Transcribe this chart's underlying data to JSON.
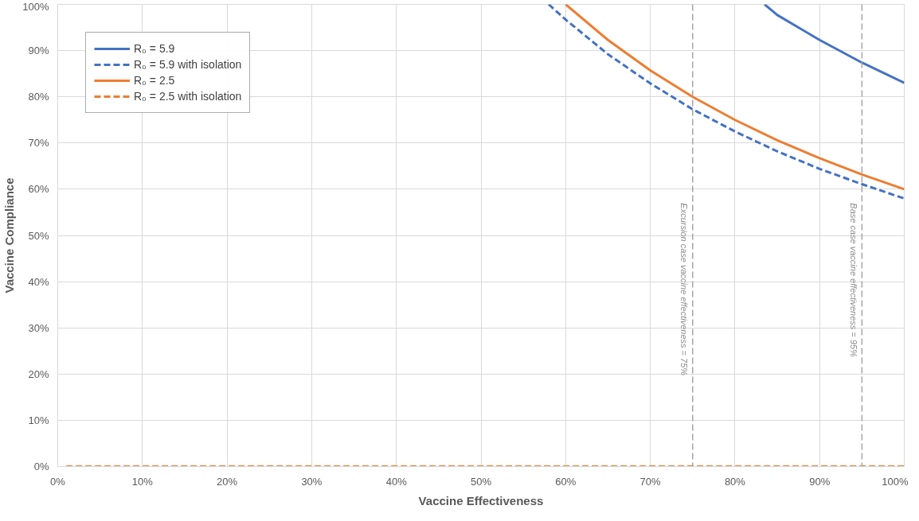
{
  "chart_data": {
    "type": "line",
    "xlabel": "Vaccine Effectiveness",
    "ylabel": "Vaccine Compliance",
    "series": [
      {
        "name": "R₀ = 5.9",
        "color": "#4472c4",
        "line_style": "solid",
        "x": [
          83.5,
          85,
          90,
          95,
          100
        ],
        "values": [
          100,
          97.7,
          92.3,
          87.4,
          83
        ]
      },
      {
        "name": "R₀ = 5.9 with isolation",
        "color": "#4472c4",
        "line_style": "dashed",
        "x": [
          58,
          60,
          65,
          70,
          75,
          80,
          85,
          90,
          95,
          100
        ],
        "values": [
          100,
          96.7,
          89.2,
          82.9,
          77.3,
          72.5,
          68.2,
          64.4,
          61.1,
          58
        ]
      },
      {
        "name": "R₀ = 2.5",
        "color": "#ed7d31",
        "line_style": "solid",
        "x": [
          60,
          65,
          70,
          75,
          80,
          85,
          90,
          95,
          100
        ],
        "values": [
          100,
          92.3,
          85.7,
          80,
          75,
          70.6,
          66.7,
          63.2,
          60
        ]
      },
      {
        "name": "R₀ = 2.5 with isolation",
        "color": "#ed7d31",
        "line_style": "dashed",
        "x": [
          1,
          100
        ],
        "values": [
          0,
          0
        ]
      }
    ],
    "ref_lines": [
      {
        "axis": "x",
        "value": 75,
        "label": "Excursion case vaccine effectiveness = 75%",
        "color": "#a5a5a5",
        "line_style": "dashed"
      },
      {
        "axis": "x",
        "value": 95,
        "label": "Base case vaccine effectiveness = 95%",
        "color": "#a5a5a5",
        "line_style": "dashed"
      }
    ],
    "xlim": [
      0,
      100
    ],
    "ylim": [
      0,
      100
    ],
    "xticks": [
      {
        "value": 0,
        "label": "0%"
      },
      {
        "value": 10,
        "label": "10%"
      },
      {
        "value": 20,
        "label": "20%"
      },
      {
        "value": 30,
        "label": "30%"
      },
      {
        "value": 40,
        "label": "40%"
      },
      {
        "value": 50,
        "label": "50%"
      },
      {
        "value": 60,
        "label": "60%"
      },
      {
        "value": 70,
        "label": "70%"
      },
      {
        "value": 80,
        "label": "80%"
      },
      {
        "value": 90,
        "label": "90%"
      },
      {
        "value": 100,
        "label": "100%"
      }
    ],
    "yticks": [
      {
        "value": 0,
        "label": "0%"
      },
      {
        "value": 10,
        "label": "10%"
      },
      {
        "value": 20,
        "label": "20%"
      },
      {
        "value": 30,
        "label": "30%"
      },
      {
        "value": 40,
        "label": "40%"
      },
      {
        "value": 50,
        "label": "50%"
      },
      {
        "value": 60,
        "label": "60%"
      },
      {
        "value": 70,
        "label": "70%"
      },
      {
        "value": 80,
        "label": "80%"
      },
      {
        "value": 90,
        "label": "90%"
      },
      {
        "value": 100,
        "label": "100%"
      }
    ],
    "grid": true,
    "legend": "top left",
    "marker": "none"
  }
}
